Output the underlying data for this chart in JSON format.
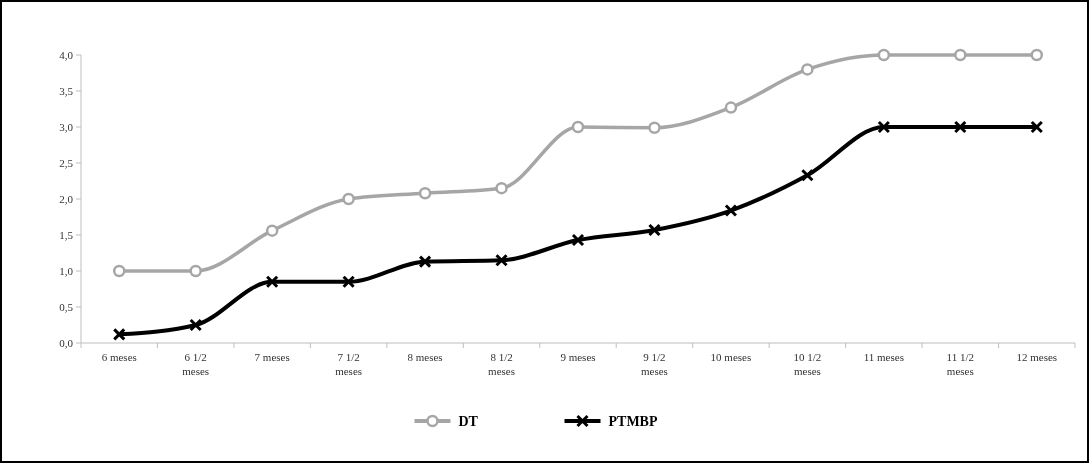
{
  "chart_data": {
    "type": "line",
    "categories": [
      "6 meses",
      "6 1/2 meses",
      "7 meses",
      "7 1/2 meses",
      "8 meses",
      "8 1/2 meses",
      "9 meses",
      "9 1/2 meses",
      "10 meses",
      "10 1/2 meses",
      "11 meses",
      "11 1/2 meses",
      "12 meses"
    ],
    "series": [
      {
        "name": "DT",
        "color": "#a6a6a6",
        "marker": "circle",
        "values": [
          1.0,
          1.0,
          1.56,
          2.0,
          2.08,
          2.15,
          3.0,
          2.99,
          3.27,
          3.8,
          4.0,
          4.0,
          4.0
        ]
      },
      {
        "name": "PTMBP",
        "color": "#000000",
        "marker": "cross",
        "values": [
          0.12,
          0.25,
          0.85,
          0.85,
          1.13,
          1.15,
          1.43,
          1.57,
          1.84,
          2.33,
          3.0,
          3.0,
          3.0
        ]
      }
    ],
    "ylim": [
      0,
      4
    ],
    "yticks": [
      {
        "value": 0,
        "label": "0,0"
      },
      {
        "value": 0.5,
        "label": "0,5"
      },
      {
        "value": 1,
        "label": "1,0"
      },
      {
        "value": 1.5,
        "label": "1,5"
      },
      {
        "value": 2,
        "label": "2,0"
      },
      {
        "value": 2.5,
        "label": "2,5"
      },
      {
        "value": 3,
        "label": "3,0"
      },
      {
        "value": 3.5,
        "label": "3,5"
      },
      {
        "value": 4,
        "label": "4,0"
      }
    ],
    "grid": false,
    "legend": "bottom",
    "line_style": "solid"
  }
}
